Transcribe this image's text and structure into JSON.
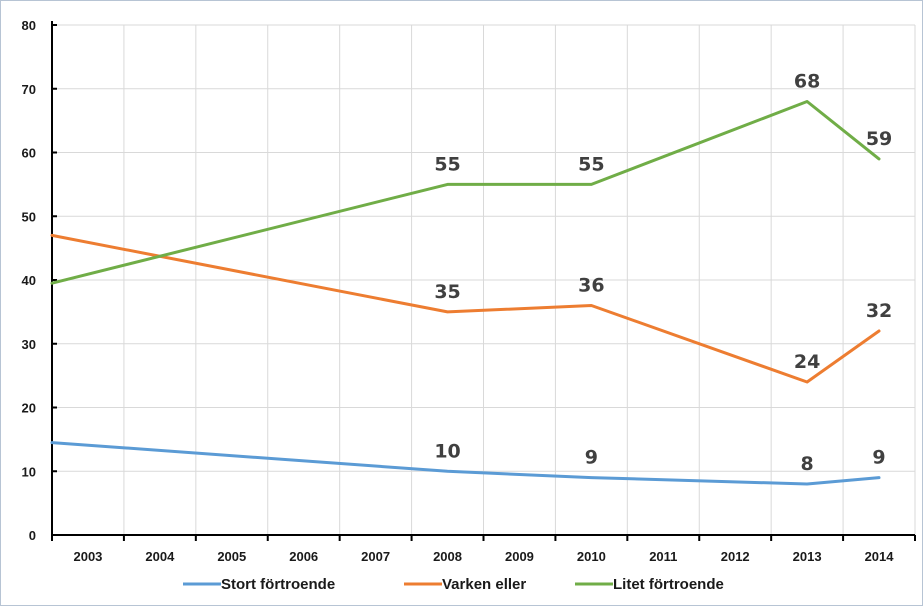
{
  "chart_data": {
    "type": "line",
    "x": [
      "2003",
      "2004",
      "2005",
      "2006",
      "2007",
      "2008",
      "2009",
      "2010",
      "2011",
      "2012",
      "2013",
      "2014"
    ],
    "ylim": [
      0,
      80
    ],
    "yticks": [
      "0",
      "10",
      "20",
      "30",
      "40",
      "50",
      "60",
      "70",
      "80"
    ],
    "grid": true,
    "legend_position": "bottom",
    "series": [
      {
        "name": "Stort förtroende",
        "color": "#5b9bd5",
        "values": [
          14.5,
          null,
          null,
          null,
          null,
          10,
          null,
          9,
          null,
          null,
          8,
          9
        ],
        "labels": [
          "",
          "",
          "",
          "",
          "",
          "10",
          "",
          "9",
          "",
          "",
          "8",
          "9"
        ]
      },
      {
        "name": "Varken eller",
        "color": "#ed7d31",
        "values": [
          47,
          null,
          null,
          null,
          null,
          35,
          null,
          36,
          null,
          null,
          24,
          32
        ],
        "labels": [
          "",
          "",
          "",
          "",
          "",
          "35",
          "",
          "36",
          "",
          "",
          "24",
          "32"
        ]
      },
      {
        "name": "Litet förtroende",
        "color": "#70ad47",
        "values": [
          39.5,
          null,
          null,
          null,
          null,
          55,
          null,
          55,
          null,
          null,
          68,
          59
        ],
        "labels": [
          "",
          "",
          "",
          "",
          "",
          "55",
          "",
          "55",
          "",
          "",
          "68",
          "59"
        ]
      }
    ]
  }
}
